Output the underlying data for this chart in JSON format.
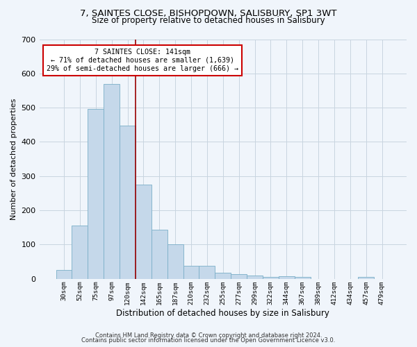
{
  "title": "7, SAINTES CLOSE, BISHOPDOWN, SALISBURY, SP1 3WT",
  "subtitle": "Size of property relative to detached houses in Salisbury",
  "xlabel": "Distribution of detached houses by size in Salisbury",
  "ylabel": "Number of detached properties",
  "bar_labels": [
    "30sqm",
    "52sqm",
    "75sqm",
    "97sqm",
    "120sqm",
    "142sqm",
    "165sqm",
    "187sqm",
    "210sqm",
    "232sqm",
    "255sqm",
    "277sqm",
    "299sqm",
    "322sqm",
    "344sqm",
    "367sqm",
    "389sqm",
    "412sqm",
    "434sqm",
    "457sqm",
    "479sqm"
  ],
  "bar_values": [
    25,
    155,
    497,
    570,
    448,
    275,
    143,
    100,
    38,
    37,
    17,
    14,
    10,
    5,
    8,
    5,
    0,
    0,
    0,
    5,
    0
  ],
  "bar_color": "#c5d8ea",
  "bar_edge_color": "#7aaec8",
  "vline_color": "#990000",
  "annotation_title": "7 SAINTES CLOSE: 141sqm",
  "annotation_line1": "← 71% of detached houses are smaller (1,639)",
  "annotation_line2": "29% of semi-detached houses are larger (666) →",
  "annotation_box_color": "#ffffff",
  "annotation_border_color": "#cc0000",
  "ylim": [
    0,
    700
  ],
  "yticks": [
    0,
    100,
    200,
    300,
    400,
    500,
    600,
    700
  ],
  "footer1": "Contains HM Land Registry data © Crown copyright and database right 2024.",
  "footer2": "Contains public sector information licensed under the Open Government Licence v3.0.",
  "bg_color": "#f0f5fb",
  "plot_bg_color": "#f0f5fb"
}
